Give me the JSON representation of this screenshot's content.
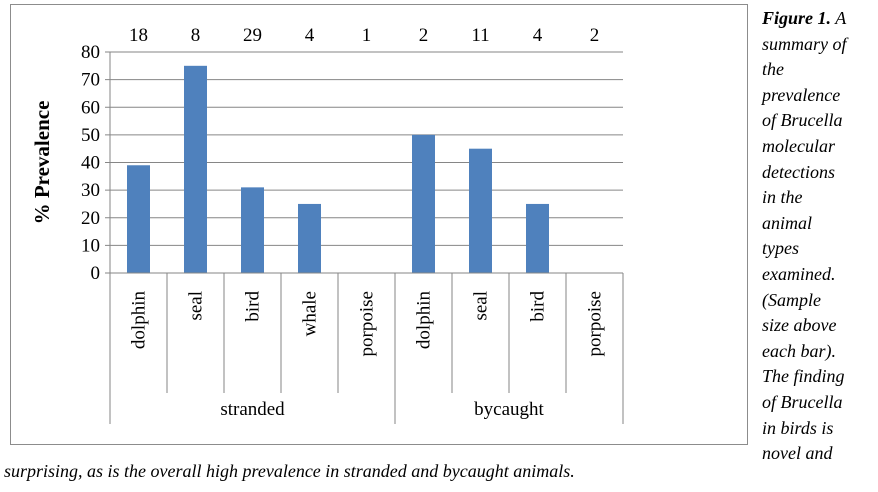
{
  "caption": {
    "label": "Figure 1.",
    "side_lines": [
      "A",
      "summary of",
      "the",
      "prevalence",
      "of Brucella",
      "molecular",
      "detections",
      "in the",
      "animal",
      "types",
      "examined.",
      "(Sample",
      "size above",
      "each bar).",
      "The finding",
      "of Brucella",
      "in birds is",
      "novel and"
    ],
    "bottom_line": "surprising, as is the overall high prevalence in stranded and bycaught animals."
  },
  "chart_data": {
    "type": "bar",
    "title": "",
    "ylabel": "% Prevalence",
    "xlabel": "",
    "ylim": [
      0,
      80
    ],
    "yticks": [
      0,
      10,
      20,
      30,
      40,
      50,
      60,
      70,
      80
    ],
    "grid": true,
    "bar_color": "#4f81bd",
    "categories": [
      "dolphin",
      "seal",
      "bird",
      "whale",
      "porpoise",
      "dolphin",
      "seal",
      "bird",
      "porpoise"
    ],
    "groups": [
      {
        "name": "stranded",
        "count": 5
      },
      {
        "name": "bycaught",
        "count": 4
      }
    ],
    "values": [
      39,
      75,
      31,
      25,
      0,
      50,
      45,
      25,
      0
    ],
    "sample_sizes": [
      "18",
      "8",
      "29",
      "4",
      "1",
      "2",
      "11",
      "4",
      "2"
    ]
  }
}
